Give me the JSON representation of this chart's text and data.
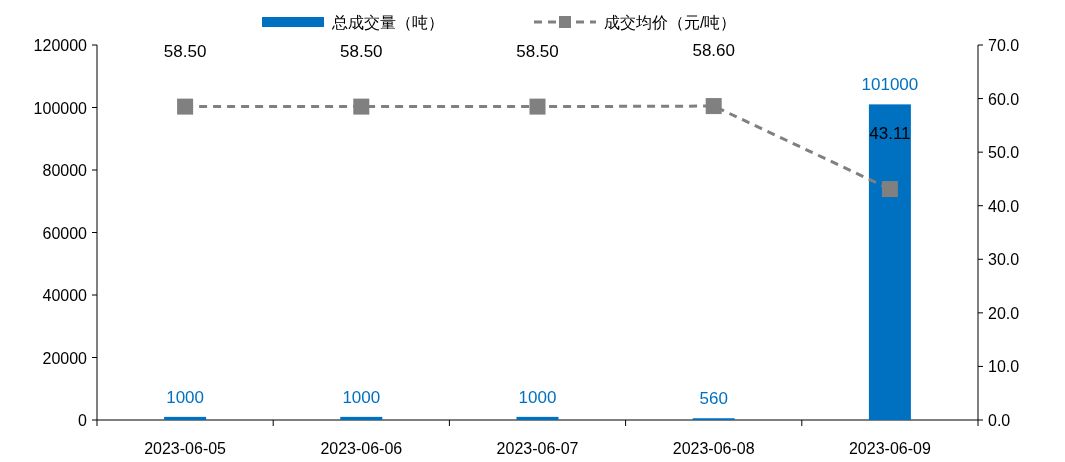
{
  "chart_data": {
    "type": "bar",
    "categories": [
      "2023-06-05",
      "2023-06-06",
      "2023-06-07",
      "2023-06-08",
      "2023-06-09"
    ],
    "series": [
      {
        "name": "总成交量（吨）",
        "color": "#0070c0",
        "values": [
          1000,
          1000,
          1000,
          560,
          101000
        ],
        "value_labels": [
          "1000",
          "1000",
          "1000",
          "560",
          "101000"
        ]
      },
      {
        "name": "成交均价（元/吨）",
        "type": "line",
        "axis": "y2",
        "color": "#808080",
        "marker": "square",
        "line_style": "dashed",
        "values": [
          58.5,
          58.5,
          58.5,
          58.6,
          43.11
        ],
        "value_labels": [
          "58.50",
          "58.50",
          "58.50",
          "58.60",
          "43.11"
        ]
      }
    ],
    "ylim": [
      0,
      120000
    ],
    "yticks": [
      0,
      20000,
      40000,
      60000,
      80000,
      100000,
      120000
    ],
    "y2lim": [
      0,
      70
    ],
    "y2ticks": [
      {
        "value": 0,
        "label": "0.0"
      },
      {
        "value": 10,
        "label": "10.0"
      },
      {
        "value": 20,
        "label": "20.0"
      },
      {
        "value": 30,
        "label": "30.0"
      },
      {
        "value": 40,
        "label": "40.0"
      },
      {
        "value": 50,
        "label": "50.0"
      },
      {
        "value": 60,
        "label": "60.0"
      },
      {
        "value": 70,
        "label": "70.0"
      }
    ],
    "legend": "top",
    "grid": false
  }
}
